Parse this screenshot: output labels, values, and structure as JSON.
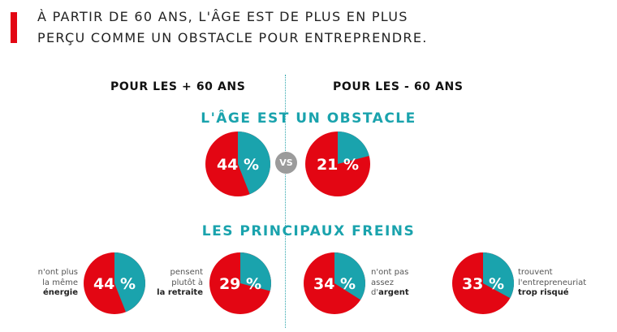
{
  "header": {
    "title_line1": "À PARTIR DE 60 ANS, L'ÂGE EST DE PLUS EN PLUS",
    "title_line2": "PERÇU COMME UN OBSTACLE POUR ENTREPRENDRE."
  },
  "columns": {
    "left": "POUR LES + 60 ANS",
    "right": "POUR LES - 60 ANS"
  },
  "sections": {
    "obstacle": "L'ÂGE EST UN OBSTACLE",
    "freins": "LES PRINCIPAUX FREINS"
  },
  "vs_label": "VS",
  "colors": {
    "accent": "#e30613",
    "teal": "#1aa3ad",
    "vs": "#9b9b9b"
  },
  "captions": {
    "energie": {
      "pre": "n'ont plus\nla même",
      "bold": "énergie"
    },
    "retraite": {
      "pre": "pensent\nplutôt à",
      "bold": "la retraite"
    },
    "argent": {
      "pre": "n'ont pas\nassez\nd'",
      "bold": "argent"
    },
    "risque": {
      "pre": "trouvent\nl'entrepreneuriat",
      "bold": "trop risqué"
    }
  },
  "chart_data": [
    {
      "type": "pie",
      "group": "L'ÂGE EST UN OBSTACLE",
      "subgroup": "POUR LES + 60 ANS",
      "value": 44,
      "label": "44 %"
    },
    {
      "type": "pie",
      "group": "L'ÂGE EST UN OBSTACLE",
      "subgroup": "POUR LES - 60 ANS",
      "value": 21,
      "label": "21 %"
    },
    {
      "type": "pie",
      "group": "LES PRINCIPAUX FREINS",
      "subgroup": "POUR LES + 60 ANS",
      "value": 44,
      "label": "44 %"
    },
    {
      "type": "pie",
      "group": "LES PRINCIPAUX FREINS",
      "subgroup": "POUR LES + 60 ANS",
      "value": 29,
      "label": "29 %"
    },
    {
      "type": "pie",
      "group": "LES PRINCIPAUX FREINS",
      "subgroup": "POUR LES - 60 ANS",
      "value": 34,
      "label": "34 %"
    },
    {
      "type": "pie",
      "group": "LES PRINCIPAUX FREINS",
      "subgroup": "POUR LES - 60 ANS",
      "value": 33,
      "label": "33 %"
    }
  ]
}
